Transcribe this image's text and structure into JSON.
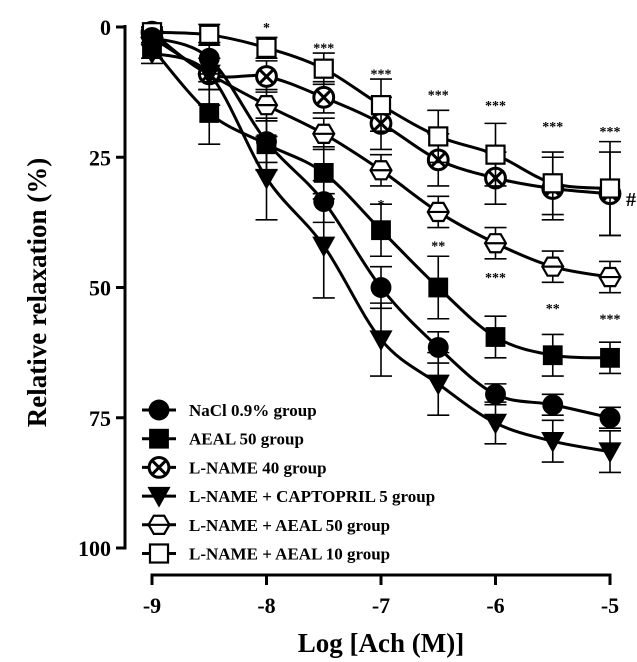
{
  "chart_data": {
    "type": "line",
    "title": "",
    "xlabel": "Log [Ach (M)]",
    "ylabel": "Relative relaxation (%)",
    "xlim": [
      -9,
      -5
    ],
    "ylim": [
      0,
      100
    ],
    "y_inverted": true,
    "x_ticks": [
      -9,
      -8,
      -7,
      -6,
      -5
    ],
    "x_tick_labels": [
      "-9",
      "-8",
      "-7",
      "-6",
      "-5"
    ],
    "y_ticks": [
      0,
      25,
      50,
      75,
      100
    ],
    "y_tick_labels": [
      "0",
      "25",
      "50",
      "75",
      "100"
    ],
    "grid": false,
    "legend_position": "bottom-left",
    "x": [
      -9,
      -8.5,
      -8,
      -7.5,
      -7,
      -6.5,
      -6,
      -5.5,
      -5
    ],
    "series": [
      {
        "name": "NaCl 0.9% group",
        "marker": "circle-filled",
        "values": [
          2,
          6,
          22,
          33.5,
          50,
          61.5,
          70.5,
          72.5,
          75
        ],
        "errors": [
          1,
          3,
          4,
          4,
          4,
          3,
          2,
          2,
          2
        ]
      },
      {
        "name": "AEAL 50 group",
        "marker": "square-filled",
        "values": [
          4,
          16.5,
          22.5,
          28,
          39,
          50,
          59.5,
          63,
          63.5
        ],
        "errors": [
          2,
          6,
          5,
          5,
          5,
          6,
          4,
          4,
          3
        ]
      },
      {
        "name": "L-NAME 40 group",
        "marker": "circle-x",
        "values": [
          1,
          9,
          9.5,
          13.5,
          18.5,
          25.5,
          29,
          31,
          32
        ],
        "errors": [
          1,
          3,
          3,
          3,
          5,
          5,
          5,
          6,
          8
        ]
      },
      {
        "name": "L-NAME + CAPTOPRIL 5 group",
        "marker": "triangle-down",
        "values": [
          5,
          9,
          29,
          42,
          60,
          68.5,
          76,
          79.5,
          81.5
        ],
        "errors": [
          2,
          6,
          8,
          10,
          7,
          6,
          4,
          4,
          4
        ]
      },
      {
        "name": "L-NAME + AEAL 50 group",
        "marker": "hexagon-open",
        "values": [
          2,
          9,
          15,
          20.5,
          27.5,
          35.5,
          41.5,
          46,
          48
        ],
        "errors": [
          1,
          3,
          3,
          3,
          3,
          3,
          3,
          3,
          3
        ]
      },
      {
        "name": "L-NAME + AEAL 10 group",
        "marker": "square-open",
        "values": [
          1,
          1.5,
          4,
          8,
          15,
          21,
          24.5,
          30,
          31
        ],
        "errors": [
          1,
          2,
          2,
          3,
          5,
          5,
          6,
          6,
          9
        ]
      }
    ],
    "annotations": [
      {
        "text": "*",
        "x": -8,
        "y": -1
      },
      {
        "text": "***",
        "x": -7.5,
        "y": 3
      },
      {
        "text": "***",
        "x": -7,
        "y": 8
      },
      {
        "text": "***",
        "x": -6.5,
        "y": 12
      },
      {
        "text": "***",
        "x": -6,
        "y": 14
      },
      {
        "text": "***",
        "x": -5.5,
        "y": 18
      },
      {
        "text": "***",
        "x": -5,
        "y": 19
      },
      {
        "text": "*",
        "x": -7,
        "y": 33
      },
      {
        "text": "**",
        "x": -6.5,
        "y": 41
      },
      {
        "text": "***",
        "x": -6,
        "y": 47
      },
      {
        "text": "**",
        "x": -5.5,
        "y": 53
      },
      {
        "text": "***",
        "x": -5,
        "y": 55
      }
    ],
    "hash_mark": {
      "text": "#",
      "x": -5,
      "y": 33
    }
  }
}
